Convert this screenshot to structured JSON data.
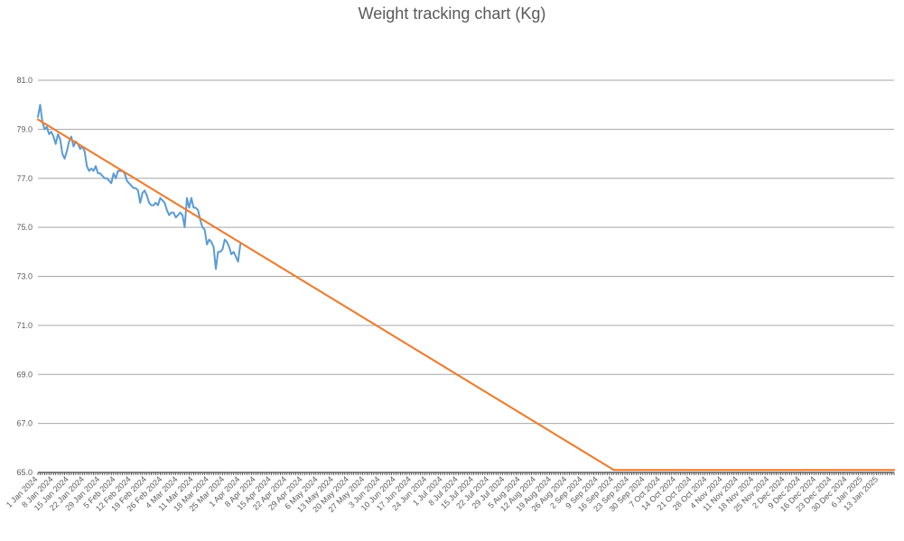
{
  "chart_data": {
    "type": "line",
    "title": "Weight tracking chart (Kg)",
    "xlabel": "",
    "ylabel": "",
    "ylim": [
      65.0,
      81.0
    ],
    "xlim": [
      "2024-01-01",
      "2025-01-20"
    ],
    "grid": true,
    "legend": "none",
    "y_ticks": [
      "65.0",
      "67.0",
      "69.0",
      "71.0",
      "73.0",
      "75.0",
      "77.0",
      "79.0",
      "81.0"
    ],
    "x_ticks": [
      {
        "date": "2024-01-01",
        "label": "1 Jan 2024"
      },
      {
        "date": "2024-01-08",
        "label": "8 Jan 2024"
      },
      {
        "date": "2024-01-15",
        "label": "15 Jan 2024"
      },
      {
        "date": "2024-01-22",
        "label": "22 Jan 2024"
      },
      {
        "date": "2024-01-29",
        "label": "29 Jan 2024"
      },
      {
        "date": "2024-02-05",
        "label": "5 Feb 2024"
      },
      {
        "date": "2024-02-12",
        "label": "12 Feb 2024"
      },
      {
        "date": "2024-02-19",
        "label": "19 Feb 2024"
      },
      {
        "date": "2024-02-26",
        "label": "26 Feb 2024"
      },
      {
        "date": "2024-03-04",
        "label": "4 Mar 2024"
      },
      {
        "date": "2024-03-11",
        "label": "11 Mar 2024"
      },
      {
        "date": "2024-03-18",
        "label": "18 Mar 2024"
      },
      {
        "date": "2024-03-25",
        "label": "25 Mar 2024"
      },
      {
        "date": "2024-04-01",
        "label": "1 Apr 2024"
      },
      {
        "date": "2024-04-08",
        "label": "8 Apr 2024"
      },
      {
        "date": "2024-04-15",
        "label": "15 Apr 2024"
      },
      {
        "date": "2024-04-22",
        "label": "22 Apr 2024"
      },
      {
        "date": "2024-04-29",
        "label": "29 Apr 2024"
      },
      {
        "date": "2024-05-06",
        "label": "6 May 2024"
      },
      {
        "date": "2024-05-13",
        "label": "13 May 2024"
      },
      {
        "date": "2024-05-20",
        "label": "20 May 2024"
      },
      {
        "date": "2024-05-27",
        "label": "27 May 2024"
      },
      {
        "date": "2024-06-03",
        "label": "3 Jun 2024"
      },
      {
        "date": "2024-06-10",
        "label": "10 Jun 2024"
      },
      {
        "date": "2024-06-17",
        "label": "17 Jun 2024"
      },
      {
        "date": "2024-06-24",
        "label": "24 Jun 2024"
      },
      {
        "date": "2024-07-01",
        "label": "1 Jul 2024"
      },
      {
        "date": "2024-07-08",
        "label": "8 Jul 2024"
      },
      {
        "date": "2024-07-15",
        "label": "15 Jul 2024"
      },
      {
        "date": "2024-07-22",
        "label": "22 Jul 2024"
      },
      {
        "date": "2024-07-29",
        "label": "29 Jul 2024"
      },
      {
        "date": "2024-08-05",
        "label": "5 Aug 2024"
      },
      {
        "date": "2024-08-12",
        "label": "12 Aug 2024"
      },
      {
        "date": "2024-08-19",
        "label": "19 Aug 2024"
      },
      {
        "date": "2024-08-26",
        "label": "26 Aug 2024"
      },
      {
        "date": "2024-09-02",
        "label": "2 Sep 2024"
      },
      {
        "date": "2024-09-09",
        "label": "9 Sep 2024"
      },
      {
        "date": "2024-09-16",
        "label": "16 Sep 2024"
      },
      {
        "date": "2024-09-23",
        "label": "23 Sep 2024"
      },
      {
        "date": "2024-09-30",
        "label": "30 Sep 2024"
      },
      {
        "date": "2024-10-07",
        "label": "7 Oct 2024"
      },
      {
        "date": "2024-10-14",
        "label": "14 Oct 2024"
      },
      {
        "date": "2024-10-21",
        "label": "21 Oct 2024"
      },
      {
        "date": "2024-10-28",
        "label": "28 Oct 2024"
      },
      {
        "date": "2024-11-04",
        "label": "4 Nov 2024"
      },
      {
        "date": "2024-11-11",
        "label": "11 Nov 2024"
      },
      {
        "date": "2024-11-18",
        "label": "18 Nov 2024"
      },
      {
        "date": "2024-11-25",
        "label": "25 Nov 2024"
      },
      {
        "date": "2024-12-02",
        "label": "2 Dec 2024"
      },
      {
        "date": "2024-12-09",
        "label": "9 Dec 2024"
      },
      {
        "date": "2024-12-16",
        "label": "16 Dec 2024"
      },
      {
        "date": "2024-12-23",
        "label": "23 Dec 2024"
      },
      {
        "date": "2024-12-30",
        "label": "30 Dec 2024"
      },
      {
        "date": "2025-01-06",
        "label": "6 Jan 2025"
      },
      {
        "date": "2025-01-13",
        "label": "13 Jan 2025"
      }
    ],
    "series": [
      {
        "color": "#5b9bd5",
        "points": [
          [
            "2024-01-01",
            79.5
          ],
          [
            "2024-01-02",
            80.0
          ],
          [
            "2024-01-03",
            79.3
          ],
          [
            "2024-01-04",
            79.0
          ],
          [
            "2024-01-05",
            79.1
          ],
          [
            "2024-01-06",
            78.8
          ],
          [
            "2024-01-07",
            78.9
          ],
          [
            "2024-01-08",
            78.7
          ],
          [
            "2024-01-09",
            78.4
          ],
          [
            "2024-01-10",
            78.8
          ],
          [
            "2024-01-11",
            78.6
          ],
          [
            "2024-01-12",
            78.0
          ],
          [
            "2024-01-13",
            77.8
          ],
          [
            "2024-01-14",
            78.1
          ],
          [
            "2024-01-15",
            78.5
          ],
          [
            "2024-01-16",
            78.7
          ],
          [
            "2024-01-17",
            78.3
          ],
          [
            "2024-01-18",
            78.5
          ],
          [
            "2024-01-19",
            78.4
          ],
          [
            "2024-01-20",
            78.2
          ],
          [
            "2024-01-21",
            78.3
          ],
          [
            "2024-01-22",
            78.1
          ],
          [
            "2024-01-23",
            77.5
          ],
          [
            "2024-01-24",
            77.3
          ],
          [
            "2024-01-25",
            77.4
          ],
          [
            "2024-01-26",
            77.3
          ],
          [
            "2024-01-27",
            77.5
          ],
          [
            "2024-01-28",
            77.2
          ],
          [
            "2024-01-29",
            77.2
          ],
          [
            "2024-01-30",
            77.1
          ],
          [
            "2024-01-31",
            77.0
          ],
          [
            "2024-02-01",
            77.0
          ],
          [
            "2024-02-02",
            76.9
          ],
          [
            "2024-02-03",
            76.8
          ],
          [
            "2024-02-04",
            77.2
          ],
          [
            "2024-02-05",
            77.0
          ],
          [
            "2024-02-06",
            77.3
          ],
          [
            "2024-02-07",
            77.3
          ],
          [
            "2024-02-08",
            77.3
          ],
          [
            "2024-02-09",
            77.2
          ],
          [
            "2024-02-10",
            76.9
          ],
          [
            "2024-02-11",
            76.8
          ],
          [
            "2024-02-12",
            76.7
          ],
          [
            "2024-02-13",
            76.6
          ],
          [
            "2024-02-14",
            76.6
          ],
          [
            "2024-02-15",
            76.5
          ],
          [
            "2024-02-16",
            76.0
          ],
          [
            "2024-02-17",
            76.4
          ],
          [
            "2024-02-18",
            76.5
          ],
          [
            "2024-02-19",
            76.3
          ],
          [
            "2024-02-20",
            76.0
          ],
          [
            "2024-02-21",
            75.9
          ],
          [
            "2024-02-22",
            75.9
          ],
          [
            "2024-02-23",
            76.0
          ],
          [
            "2024-02-24",
            75.9
          ],
          [
            "2024-02-25",
            76.2
          ],
          [
            "2024-02-26",
            76.1
          ],
          [
            "2024-02-27",
            76.0
          ],
          [
            "2024-02-28",
            75.7
          ],
          [
            "2024-02-29",
            75.5
          ],
          [
            "2024-03-01",
            75.6
          ],
          [
            "2024-03-02",
            75.6
          ],
          [
            "2024-03-03",
            75.4
          ],
          [
            "2024-03-04",
            75.5
          ],
          [
            "2024-03-05",
            75.6
          ],
          [
            "2024-03-06",
            75.5
          ],
          [
            "2024-03-07",
            75.0
          ],
          [
            "2024-03-08",
            76.2
          ],
          [
            "2024-03-09",
            75.8
          ],
          [
            "2024-03-10",
            76.2
          ],
          [
            "2024-03-11",
            75.8
          ],
          [
            "2024-03-12",
            75.8
          ],
          [
            "2024-03-13",
            75.7
          ],
          [
            "2024-03-14",
            75.3
          ],
          [
            "2024-03-15",
            75.0
          ],
          [
            "2024-03-16",
            74.9
          ],
          [
            "2024-03-17",
            74.3
          ],
          [
            "2024-03-18",
            74.5
          ],
          [
            "2024-03-19",
            74.4
          ],
          [
            "2024-03-20",
            74.2
          ],
          [
            "2024-03-21",
            73.3
          ],
          [
            "2024-03-22",
            74.0
          ],
          [
            "2024-03-23",
            74.0
          ],
          [
            "2024-03-24",
            74.1
          ],
          [
            "2024-03-25",
            74.5
          ],
          [
            "2024-03-26",
            74.4
          ],
          [
            "2024-03-27",
            74.2
          ],
          [
            "2024-03-28",
            73.9
          ],
          [
            "2024-03-29",
            74.0
          ],
          [
            "2024-03-30",
            73.8
          ],
          [
            "2024-03-31",
            73.6
          ],
          [
            "2024-04-01",
            74.3
          ]
        ]
      },
      {
        "color": "#ed7d31",
        "style": "dotted",
        "points": [
          [
            "2024-01-01",
            79.4
          ],
          [
            "2024-09-16",
            65.1
          ],
          [
            "2025-01-20",
            65.1
          ]
        ]
      }
    ]
  }
}
